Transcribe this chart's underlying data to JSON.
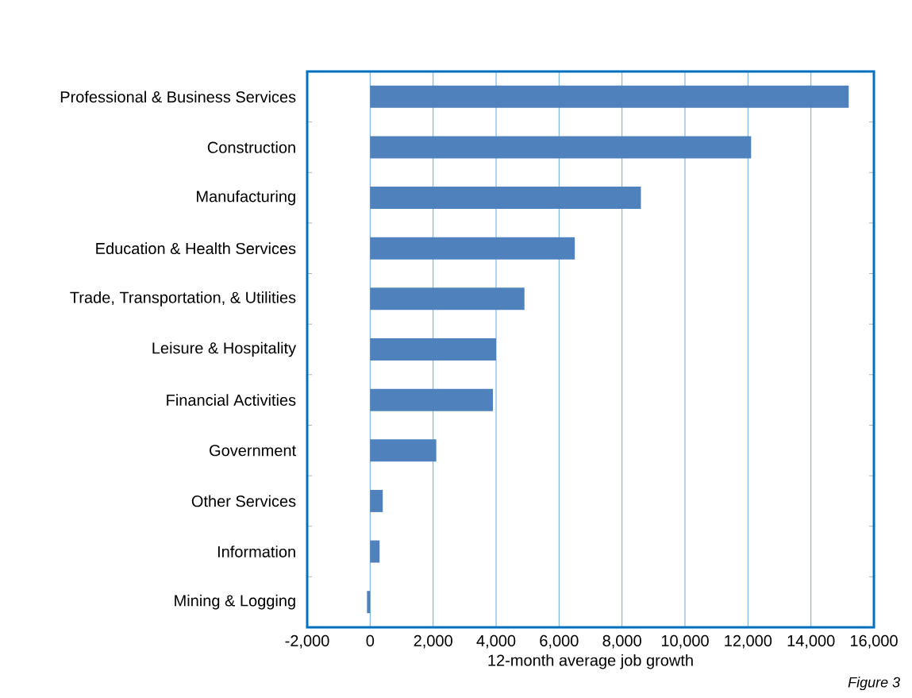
{
  "chart_data": {
    "type": "bar",
    "orientation": "horizontal",
    "xlabel": "12-month average job growth",
    "categories": [
      "Professional & Business Services",
      "Construction",
      "Manufacturing",
      "Education & Health Services",
      "Trade, Transportation, & Utilities",
      "Leisure & Hospitality",
      "Financial Activities",
      "Government",
      "Other Services",
      "Information",
      "Mining & Logging"
    ],
    "values": [
      15200,
      12100,
      8600,
      6500,
      4900,
      4000,
      3900,
      2100,
      400,
      300,
      -100
    ],
    "color": "#4f81bd",
    "xlim": [
      -2000,
      16000
    ],
    "xticks": [
      {
        "value": -2000,
        "label": "-2,000"
      },
      {
        "value": 0,
        "label": "0"
      },
      {
        "value": 2000,
        "label": "2,000"
      },
      {
        "value": 4000,
        "label": "4,000"
      },
      {
        "value": 6000,
        "label": "6,000"
      },
      {
        "value": 8000,
        "label": "8,000"
      },
      {
        "value": 10000,
        "label": "10,000"
      },
      {
        "value": 12000,
        "label": "12,000"
      },
      {
        "value": 14000,
        "label": "14,000"
      },
      {
        "value": 16000,
        "label": "16,000"
      }
    ],
    "grid": "x",
    "annotations": [
      "*Figure 3*"
    ]
  }
}
